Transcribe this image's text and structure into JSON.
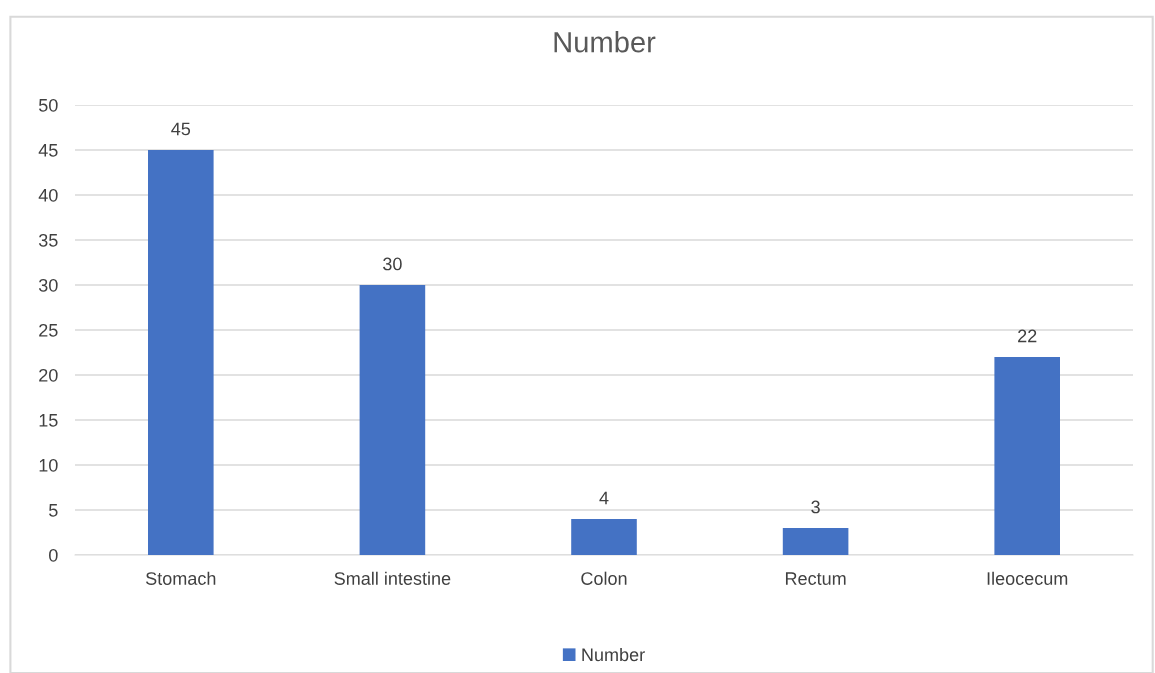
{
  "chart_data": {
    "type": "bar",
    "title": "Number",
    "categories": [
      "Stomach",
      "Small intestine",
      "Colon",
      "Rectum",
      "Ileocecum"
    ],
    "series": [
      {
        "name": "Number",
        "color": "#4472c4",
        "values": [
          45,
          30,
          4,
          3,
          22
        ]
      }
    ],
    "ylim": [
      0,
      50
    ],
    "yticks": [
      0,
      5,
      10,
      15,
      20,
      25,
      30,
      35,
      40,
      45,
      50
    ],
    "grid": "y",
    "legend": "bottom",
    "data_labels": true
  }
}
